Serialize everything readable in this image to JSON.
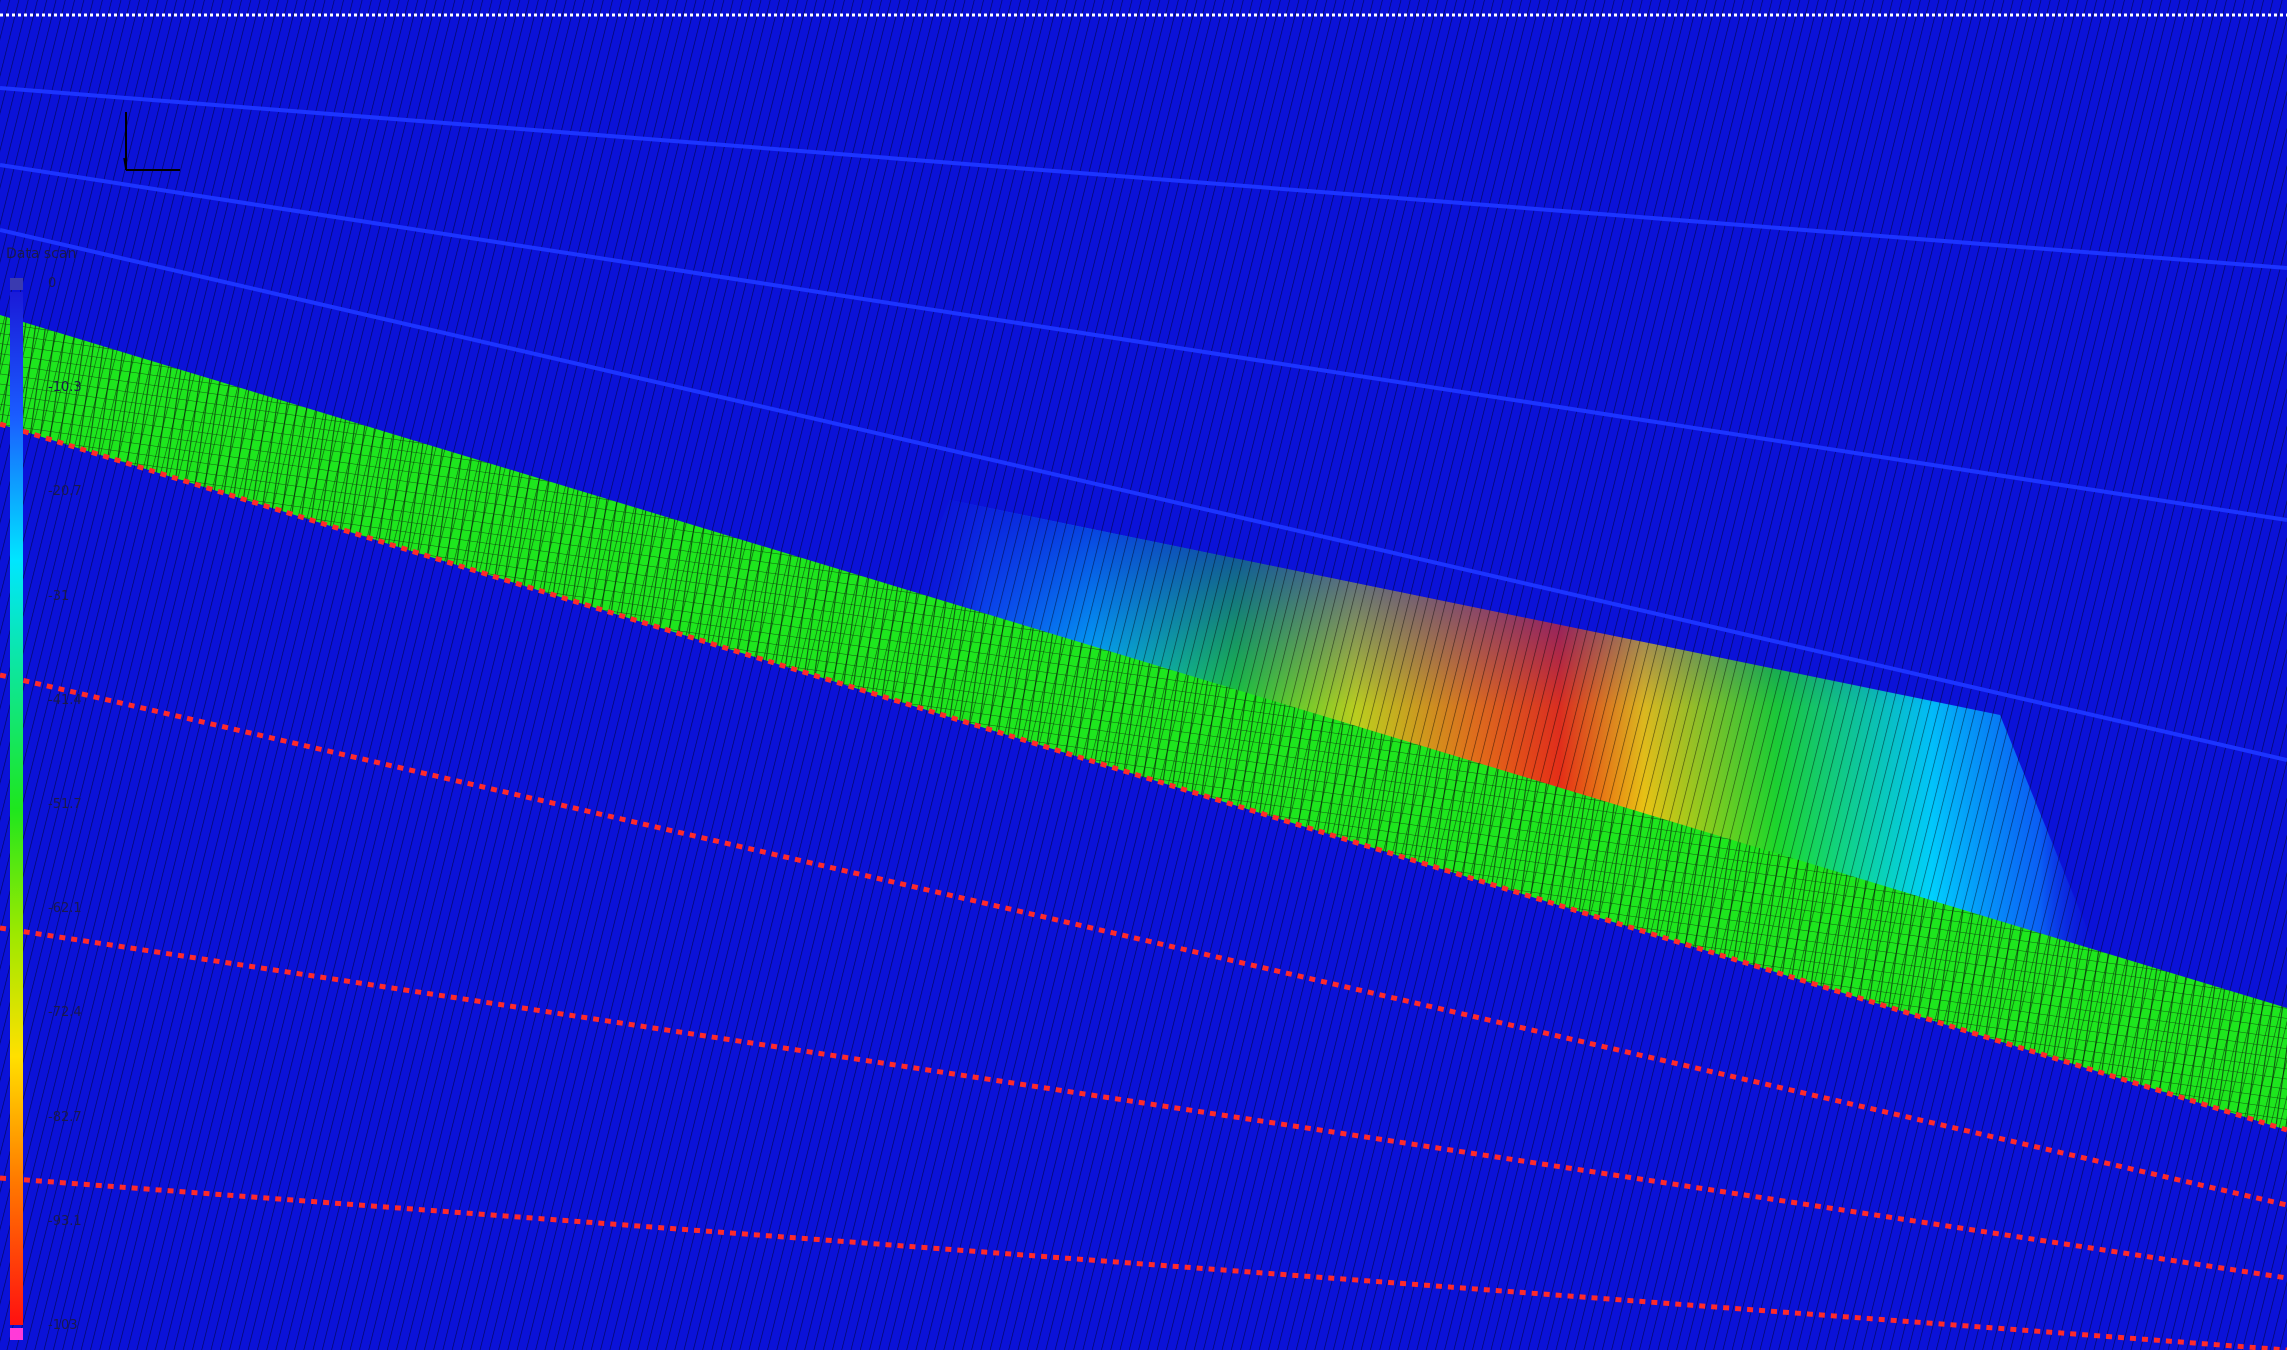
{
  "legend": {
    "title": "Data scan",
    "ticks": [
      "0",
      "-10.3",
      "-20.7",
      "-31",
      "-41.4",
      "-51.7",
      "-62.1",
      "-72.4",
      "-82.7",
      "-93.1",
      "-103"
    ]
  },
  "colors": {
    "background": "#0b12d8",
    "mesh_line": "#000000",
    "band_green": "#1ee61e",
    "dashed_red": "#ff2a2a",
    "top_dotted": "#ffffff",
    "legend_low_marker": "#3a3ab0",
    "legend_high_marker": "#ff3ad8"
  },
  "icons": [
    "axis-triad-icon"
  ]
}
